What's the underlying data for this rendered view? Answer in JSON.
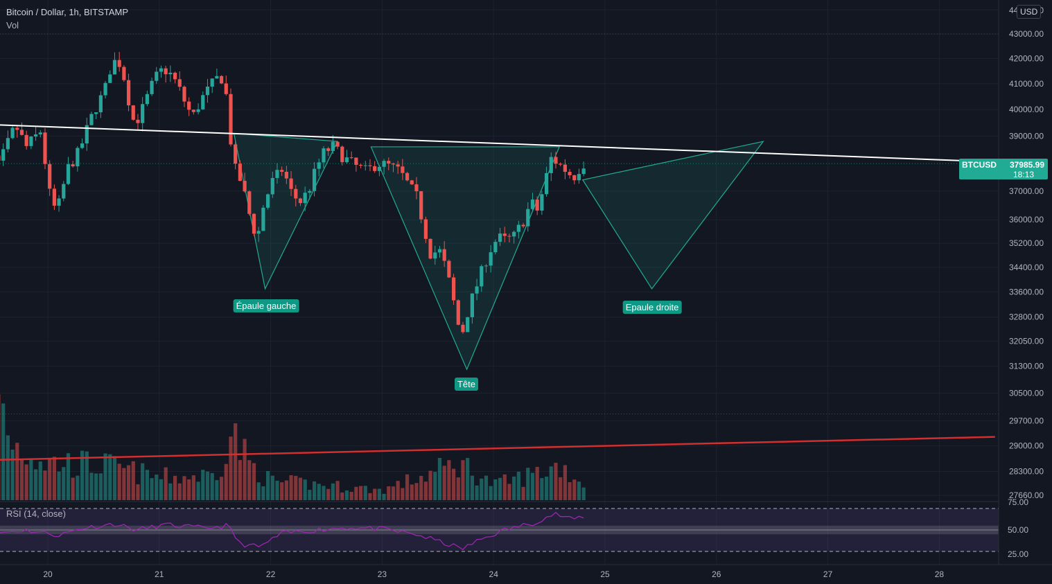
{
  "header": {
    "symbol_line": "Bitcoin / Dollar, 1h, BITSTAMP",
    "volume_label": "Vol",
    "currency": "USD"
  },
  "rsi": {
    "label": "RSI (14, close)",
    "ticks": [
      "75.00",
      "50.00",
      "25.00"
    ]
  },
  "price_tag": {
    "symbol": "BTCUSD",
    "price": "37985.99",
    "countdown": "18:13"
  },
  "annotations": {
    "left_shoulder": "Épaule gauche",
    "head": "Tête",
    "right_shoulder": "Epaule droite"
  },
  "colors": {
    "background": "#131722",
    "up": "#26a69a",
    "down": "#ef5350",
    "neckline": "#ffffff",
    "support": "#d32f2f",
    "pattern": "#22ab94",
    "rsi": "#9c27b0"
  },
  "chart_data": {
    "type": "candlestick",
    "title": "Bitcoin / Dollar, 1h, BITSTAMP",
    "x_axis": {
      "ticks": [
        "20",
        "21",
        "22",
        "23",
        "24",
        "25",
        "26",
        "27",
        "28"
      ]
    },
    "y_axis": {
      "ticks": [
        "44000.00",
        "43000.00",
        "42000.00",
        "41000.00",
        "40000.00",
        "39000.00",
        "37000.00",
        "36000.00",
        "35200.00",
        "34400.00",
        "33600.00",
        "32800.00",
        "32050.00",
        "31300.00",
        "30500.00",
        "29700.00",
        "29000.00",
        "28300.00",
        "27660.00"
      ],
      "tick_values": [
        44000,
        43000,
        42000,
        41000,
        40000,
        39000,
        37000,
        36000,
        35200,
        34400,
        33600,
        32800,
        32050,
        31300,
        30500,
        29700,
        29000,
        28300,
        27660
      ],
      "scale": "log"
    },
    "dotted_levels": [
      43000,
      29900
    ],
    "last_price": 37985.99,
    "pattern": "inverse head and shoulders",
    "price_anchors": [
      {
        "day": 19.35,
        "price": 36000
      },
      {
        "day": 19.38,
        "price": 38500
      },
      {
        "day": 19.42,
        "price": 37200
      },
      {
        "day": 19.5,
        "price": 38600
      },
      {
        "day": 19.6,
        "price": 37900
      },
      {
        "day": 19.75,
        "price": 39400
      },
      {
        "day": 19.85,
        "price": 38600
      },
      {
        "day": 19.98,
        "price": 39200
      },
      {
        "day": 20.05,
        "price": 37000
      },
      {
        "day": 20.12,
        "price": 36200
      },
      {
        "day": 20.22,
        "price": 37800
      },
      {
        "day": 20.32,
        "price": 38400
      },
      {
        "day": 20.45,
        "price": 39900
      },
      {
        "day": 20.55,
        "price": 40700
      },
      {
        "day": 20.62,
        "price": 41900
      },
      {
        "day": 20.7,
        "price": 41800
      },
      {
        "day": 20.76,
        "price": 40500
      },
      {
        "day": 20.82,
        "price": 39400
      },
      {
        "day": 20.9,
        "price": 40100
      },
      {
        "day": 21.0,
        "price": 41200
      },
      {
        "day": 21.08,
        "price": 41600
      },
      {
        "day": 21.16,
        "price": 41300
      },
      {
        "day": 21.22,
        "price": 40800
      },
      {
        "day": 21.28,
        "price": 40200
      },
      {
        "day": 21.34,
        "price": 39700
      },
      {
        "day": 21.42,
        "price": 40400
      },
      {
        "day": 21.52,
        "price": 41000
      },
      {
        "day": 21.58,
        "price": 41300
      },
      {
        "day": 21.63,
        "price": 41100
      },
      {
        "day": 21.67,
        "price": 39200
      },
      {
        "day": 21.72,
        "price": 37800
      },
      {
        "day": 21.78,
        "price": 37300
      },
      {
        "day": 21.85,
        "price": 36200
      },
      {
        "day": 21.92,
        "price": 35300
      },
      {
        "day": 21.97,
        "price": 36400
      },
      {
        "day": 22.05,
        "price": 37300
      },
      {
        "day": 22.15,
        "price": 37800
      },
      {
        "day": 22.22,
        "price": 37000
      },
      {
        "day": 22.3,
        "price": 36600
      },
      {
        "day": 22.38,
        "price": 37000
      },
      {
        "day": 22.45,
        "price": 37800
      },
      {
        "day": 22.52,
        "price": 38400
      },
      {
        "day": 22.6,
        "price": 38600
      },
      {
        "day": 22.7,
        "price": 38200
      },
      {
        "day": 22.8,
        "price": 37900
      },
      {
        "day": 22.9,
        "price": 37700
      },
      {
        "day": 23.0,
        "price": 38000
      },
      {
        "day": 23.1,
        "price": 37900
      },
      {
        "day": 23.2,
        "price": 37700
      },
      {
        "day": 23.28,
        "price": 37200
      },
      {
        "day": 23.35,
        "price": 36800
      },
      {
        "day": 23.42,
        "price": 35700
      },
      {
        "day": 23.48,
        "price": 34800
      },
      {
        "day": 23.55,
        "price": 35000
      },
      {
        "day": 23.6,
        "price": 34500
      },
      {
        "day": 23.66,
        "price": 33700
      },
      {
        "day": 23.72,
        "price": 32600
      },
      {
        "day": 23.76,
        "price": 32300
      },
      {
        "day": 23.82,
        "price": 33100
      },
      {
        "day": 23.9,
        "price": 33900
      },
      {
        "day": 24.0,
        "price": 34900
      },
      {
        "day": 24.08,
        "price": 35400
      },
      {
        "day": 24.15,
        "price": 35300
      },
      {
        "day": 24.22,
        "price": 35400
      },
      {
        "day": 24.3,
        "price": 35900
      },
      {
        "day": 24.38,
        "price": 36600
      },
      {
        "day": 24.44,
        "price": 36300
      },
      {
        "day": 24.5,
        "price": 37300
      },
      {
        "day": 24.56,
        "price": 38200
      },
      {
        "day": 24.62,
        "price": 38000
      },
      {
        "day": 24.7,
        "price": 37700
      },
      {
        "day": 24.76,
        "price": 37500
      },
      {
        "day": 24.84,
        "price": 37990
      }
    ],
    "volume_profile": [
      {
        "day": 19.35,
        "v": 0.8
      },
      {
        "day": 19.5,
        "v": 1.0
      },
      {
        "day": 19.7,
        "v": 0.45
      },
      {
        "day": 20.0,
        "v": 0.3
      },
      {
        "day": 20.5,
        "v": 0.28
      },
      {
        "day": 21.0,
        "v": 0.18
      },
      {
        "day": 21.5,
        "v": 0.2
      },
      {
        "day": 21.65,
        "v": 0.55
      },
      {
        "day": 21.8,
        "v": 0.3
      },
      {
        "day": 22.0,
        "v": 0.15
      },
      {
        "day": 22.5,
        "v": 0.12
      },
      {
        "day": 23.0,
        "v": 0.08
      },
      {
        "day": 23.4,
        "v": 0.2
      },
      {
        "day": 23.7,
        "v": 0.3
      },
      {
        "day": 24.0,
        "v": 0.12
      },
      {
        "day": 24.4,
        "v": 0.22
      },
      {
        "day": 24.6,
        "v": 0.28
      },
      {
        "day": 24.84,
        "v": 0.1
      }
    ],
    "rsi_values": [
      {
        "day": 19.35,
        "v": 25
      },
      {
        "day": 19.5,
        "v": 46
      },
      {
        "day": 19.8,
        "v": 50
      },
      {
        "day": 20.1,
        "v": 44
      },
      {
        "day": 20.3,
        "v": 52
      },
      {
        "day": 20.6,
        "v": 57
      },
      {
        "day": 20.8,
        "v": 50
      },
      {
        "day": 21.05,
        "v": 56
      },
      {
        "day": 21.4,
        "v": 52
      },
      {
        "day": 21.62,
        "v": 55
      },
      {
        "day": 21.72,
        "v": 34
      },
      {
        "day": 21.9,
        "v": 30
      },
      {
        "day": 22.1,
        "v": 46
      },
      {
        "day": 22.4,
        "v": 50
      },
      {
        "day": 22.7,
        "v": 53
      },
      {
        "day": 23.0,
        "v": 51
      },
      {
        "day": 23.3,
        "v": 45
      },
      {
        "day": 23.5,
        "v": 37
      },
      {
        "day": 23.72,
        "v": 28
      },
      {
        "day": 23.9,
        "v": 40
      },
      {
        "day": 24.1,
        "v": 50
      },
      {
        "day": 24.35,
        "v": 58
      },
      {
        "day": 24.55,
        "v": 69
      },
      {
        "day": 24.7,
        "v": 62
      },
      {
        "day": 24.84,
        "v": 67
      }
    ],
    "neckline": [
      {
        "day": 19.35,
        "price": 39450
      },
      {
        "day": 28.5,
        "price": 38050
      }
    ],
    "support_line": [
      {
        "day": 19.35,
        "price": 28600
      },
      {
        "day": 28.5,
        "price": 29250
      }
    ],
    "pattern_polygons": [
      [
        {
          "day": 21.67,
          "price": 39100
        },
        {
          "day": 21.95,
          "price": 33700
        },
        {
          "day": 22.6,
          "price": 38800
        }
      ],
      [
        {
          "day": 22.9,
          "price": 38600
        },
        {
          "day": 23.76,
          "price": 31200
        },
        {
          "day": 24.59,
          "price": 38600
        }
      ],
      [
        {
          "day": 24.8,
          "price": 37400
        },
        {
          "day": 25.42,
          "price": 33700
        },
        {
          "day": 26.42,
          "price": 38800
        }
      ]
    ]
  }
}
